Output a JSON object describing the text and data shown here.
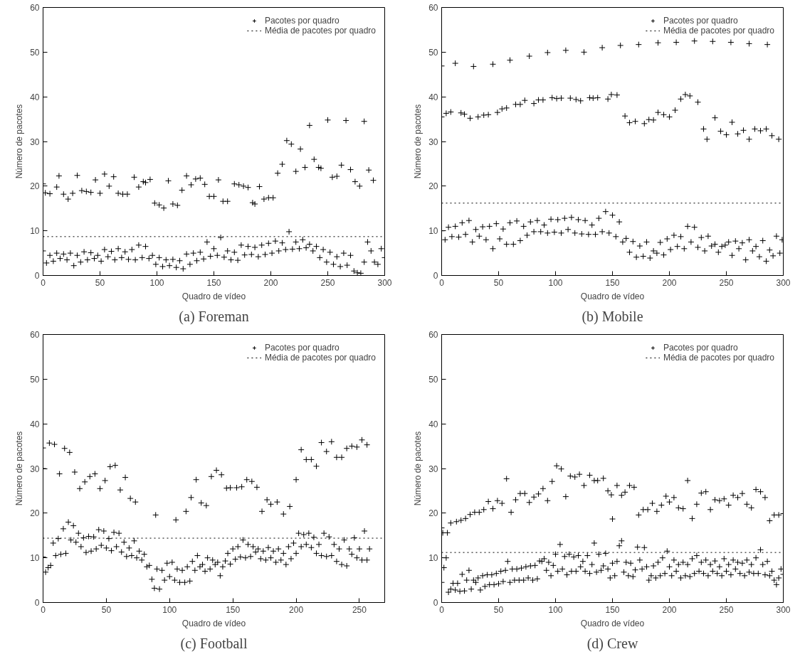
{
  "chart_data": [
    {
      "type": "scatter",
      "title": "(a) Foreman",
      "xlabel": "Quadro de vídeo",
      "ylabel": "Número de pacotes",
      "xlim": [
        0,
        300
      ],
      "xticks": [
        0,
        50,
        100,
        150,
        200,
        250,
        300
      ],
      "ylim": [
        0,
        60
      ],
      "yticks": [
        0,
        10,
        20,
        30,
        40,
        50,
        60
      ],
      "legend": "top right",
      "marker": "cross",
      "series": [
        {
          "name": "Pacotes por quadro",
          "color": "#000000",
          "x": [
            0,
            2,
            6,
            12,
            14,
            18,
            22,
            26,
            30,
            34,
            38,
            42,
            46,
            50,
            54,
            58,
            62,
            66,
            70,
            74,
            80,
            84,
            88,
            90,
            94,
            98,
            102,
            106,
            110,
            114,
            118,
            122,
            126,
            130,
            134,
            138,
            142,
            146,
            150,
            154,
            158,
            162,
            168,
            172,
            176,
            180,
            184,
            186,
            190,
            194,
            198,
            202,
            206,
            210,
            214,
            218,
            222,
            226,
            230,
            234,
            238,
            242,
            244,
            250,
            254,
            258,
            262,
            266,
            270,
            274,
            278,
            282,
            286,
            290,
            0,
            3,
            6,
            9,
            12,
            15,
            18,
            21,
            24,
            27,
            30,
            33,
            36,
            39,
            42,
            45,
            48,
            51,
            54,
            57,
            60,
            63,
            66,
            69,
            72,
            75,
            78,
            81,
            84,
            87,
            90,
            93,
            96,
            99,
            102,
            105,
            108,
            111,
            114,
            117,
            120,
            123,
            126,
            129,
            132,
            135,
            138,
            141,
            144,
            147,
            150,
            153,
            156,
            159,
            162,
            165,
            168,
            171,
            174,
            177,
            180,
            183,
            186,
            189,
            192,
            195,
            198,
            201,
            204,
            207,
            210,
            213,
            216,
            219,
            222,
            225,
            228,
            231,
            234,
            237,
            240,
            243,
            246,
            249,
            252,
            255,
            258,
            261,
            264,
            267,
            270,
            273,
            276,
            279,
            282,
            285,
            288,
            291,
            294,
            297,
            300
          ],
          "values": [
            20.5,
            18.5,
            18.3,
            19.8,
            22.3,
            18.2,
            17.1,
            18.4,
            22.4,
            19,
            18.8,
            18.6,
            21.4,
            18.4,
            22.7,
            20,
            22.1,
            18.4,
            18.2,
            18.2,
            22,
            19.8,
            21,
            20.8,
            21.5,
            16.2,
            15.8,
            15.1,
            21.2,
            16,
            15.7,
            19.1,
            22.3,
            20.3,
            21.6,
            21.8,
            20.4,
            17.7,
            17.7,
            21.4,
            16.6,
            16.6,
            20.5,
            20.3,
            20,
            19.7,
            16.3,
            16,
            19.9,
            17.1,
            17.4,
            17.4,
            22.9,
            24.9,
            30.2,
            29.4,
            23.3,
            28.3,
            24.2,
            33.6,
            26,
            24.2,
            24,
            34.8,
            22,
            22.2,
            24.7,
            34.7,
            23.7,
            21,
            20,
            34.5,
            23.6,
            21.3,
            5.5,
            2.8,
            4.5,
            3.2,
            5,
            3.8,
            4.8,
            3.5,
            5,
            2.2,
            4.5,
            3,
            5.3,
            3.5,
            5.1,
            3.8,
            4.5,
            3.2,
            5.8,
            4.2,
            5.4,
            3.5,
            6,
            4,
            5.3,
            3.6,
            5.8,
            3.5,
            6.8,
            4,
            6.5,
            3.8,
            4.5,
            2.5,
            4,
            2,
            3.5,
            2.2,
            3.6,
            1.8,
            3.3,
            1.5,
            4.8,
            2.5,
            5,
            3.3,
            5.2,
            3.7,
            7.5,
            4.3,
            6,
            4.5,
            8.5,
            4.1,
            5.5,
            3.5,
            5.2,
            3.4,
            6.8,
            4.6,
            6.5,
            4.7,
            6.3,
            4.2,
            6.8,
            4.7,
            7.2,
            5,
            7.7,
            5.5,
            7.3,
            5.8,
            9.8,
            5.9,
            7.5,
            6,
            8,
            6.2,
            7,
            5.5,
            6.5,
            4,
            5.8,
            3,
            5.2,
            2.5,
            4.2,
            2,
            5,
            2.3,
            4.5,
            1,
            0.6,
            0.5,
            3,
            7.5,
            5.5,
            3,
            2.5,
            6,
            4
          ]
        }
      ],
      "ref_lines": [
        {
          "axis": "y",
          "value": 8.7,
          "label": "Média de pacotes por quadro",
          "line_style": "dotted"
        }
      ]
    },
    {
      "type": "scatter",
      "title": "(b) Mobile",
      "xlabel": "Quadro de vídeo",
      "ylabel": "Número de pacotes",
      "xlim": [
        0,
        300
      ],
      "xticks": [
        0,
        50,
        100,
        150,
        200,
        250,
        300
      ],
      "ylim": [
        0,
        60
      ],
      "yticks": [
        0,
        10,
        20,
        30,
        40,
        50,
        60
      ],
      "legend": "top right",
      "marker": "cross",
      "series": [
        {
          "name": "Pacotes por quadro",
          "color": "#000000",
          "x": [
            0,
            12,
            28,
            45,
            60,
            77,
            93,
            109,
            125,
            141,
            157,
            173,
            190,
            206,
            222,
            238,
            254,
            270,
            286,
            0,
            4,
            8,
            17,
            20,
            25,
            32,
            37,
            41,
            49,
            53,
            57,
            65,
            69,
            73,
            81,
            85,
            89,
            97,
            101,
            105,
            113,
            118,
            122,
            130,
            133,
            137,
            146,
            149,
            154,
            161,
            165,
            170,
            178,
            182,
            186,
            190,
            195,
            200,
            205,
            210,
            214,
            218,
            225,
            230,
            233,
            240,
            245,
            250,
            255,
            260,
            265,
            270,
            275,
            280,
            285,
            290,
            296,
            0,
            3,
            6,
            9,
            12,
            15,
            18,
            21,
            24,
            27,
            30,
            33,
            36,
            39,
            42,
            45,
            48,
            51,
            54,
            57,
            60,
            63,
            66,
            69,
            72,
            75,
            78,
            81,
            84,
            87,
            90,
            93,
            96,
            99,
            102,
            105,
            108,
            111,
            114,
            117,
            120,
            123,
            126,
            129,
            132,
            135,
            138,
            141,
            144,
            147,
            150,
            153,
            156,
            159,
            162,
            165,
            168,
            171,
            174,
            177,
            180,
            183,
            186,
            189,
            192,
            195,
            198,
            201,
            204,
            207,
            210,
            213,
            216,
            219,
            222,
            225,
            228,
            231,
            234,
            237,
            240,
            243,
            246,
            249,
            252,
            255,
            258,
            261,
            264,
            267,
            270,
            273,
            276,
            279,
            282,
            285,
            288,
            291,
            294,
            297,
            299
          ],
          "values": [
            46.9,
            47.5,
            46.8,
            47.3,
            48.2,
            49.1,
            49.9,
            50.4,
            50,
            51,
            51.5,
            51.7,
            52.1,
            52.2,
            52.5,
            52.4,
            52.2,
            51.9,
            51.7,
            35.5,
            36.3,
            36.6,
            36.4,
            36.1,
            35.2,
            35.5,
            35.9,
            36,
            36.5,
            37.3,
            37.5,
            38.3,
            38.3,
            39.2,
            38.5,
            39.3,
            39.3,
            39.8,
            39.6,
            39.7,
            39.7,
            39.4,
            39.1,
            39.8,
            39.7,
            39.8,
            39.5,
            40.5,
            40.4,
            35.7,
            34.2,
            34.5,
            34,
            34.9,
            34.8,
            36.5,
            36,
            35.5,
            37,
            39.5,
            40.5,
            40.2,
            38.8,
            32.8,
            30.5,
            35.3,
            32.3,
            31.5,
            34.3,
            31.7,
            32.5,
            30.5,
            32.8,
            32.4,
            32.8,
            31.3,
            30.5,
            10,
            8,
            10.8,
            8.7,
            11,
            8.6,
            11.8,
            9.2,
            12.3,
            7.5,
            10.3,
            8.8,
            10.9,
            8,
            11,
            6,
            11.6,
            8.2,
            10.4,
            7,
            11.8,
            7,
            12.2,
            7.8,
            11,
            9,
            12,
            9.8,
            12.3,
            9.8,
            11.3,
            9.5,
            12.6,
            9.7,
            12.5,
            9.5,
            12.8,
            10.3,
            13,
            9.5,
            12.5,
            9.3,
            12.3,
            9.2,
            11.3,
            9.2,
            12.8,
            9.8,
            14.3,
            9.5,
            13.5,
            8.7,
            12,
            7.5,
            8.3,
            5.2,
            7.6,
            4.1,
            6.6,
            4.3,
            7.5,
            3.9,
            5.5,
            5,
            7.4,
            4.6,
            8.2,
            5.8,
            9,
            6.5,
            8.7,
            6,
            11,
            7.5,
            10.8,
            6.3,
            8.5,
            5.5,
            8.8,
            6.6,
            7,
            5.2,
            6.5,
            6.8,
            7.5,
            4.5,
            7.7,
            6,
            7.3,
            3.5,
            8,
            5.5,
            6.5,
            4.2,
            7.8,
            3.2,
            5.7,
            4.4,
            8.8,
            5,
            8
          ]
        }
      ],
      "ref_lines": [
        {
          "axis": "y",
          "value": 16.2,
          "label": "Média de pacotes por quadro",
          "line_style": "dotted"
        }
      ]
    },
    {
      "type": "scatter",
      "title": "(c) Football",
      "xlabel": "Quadro de vídeo",
      "ylabel": "Número de pacotes",
      "xlim": [
        0,
        270
      ],
      "xticks": [
        0,
        50,
        100,
        150,
        200,
        250
      ],
      "ylim": [
        0,
        60
      ],
      "yticks": [
        0,
        10,
        20,
        30,
        40,
        50,
        60
      ],
      "legend": "top right",
      "marker": "cross",
      "series": [
        {
          "name": "Pacotes por quadro",
          "color": "#000000",
          "x": [
            0,
            0,
            5,
            9,
            13,
            17,
            21,
            25,
            29,
            33,
            37,
            41,
            45,
            49,
            53,
            57,
            61,
            65,
            69,
            73,
            89,
            105,
            113,
            117,
            121,
            125,
            129,
            133,
            137,
            141,
            145,
            148,
            153,
            157,
            161,
            165,
            169,
            173,
            177,
            180,
            185,
            190,
            195,
            200,
            204,
            208,
            212,
            216,
            220,
            224,
            228,
            232,
            236,
            240,
            244,
            248,
            252,
            256,
            0,
            2,
            4,
            6,
            8,
            10,
            12,
            14,
            16,
            18,
            20,
            22,
            24,
            26,
            28,
            30,
            32,
            34,
            36,
            38,
            40,
            42,
            44,
            46,
            48,
            50,
            52,
            54,
            56,
            58,
            60,
            62,
            64,
            66,
            68,
            70,
            72,
            74,
            76,
            78,
            80,
            82,
            84,
            86,
            88,
            90,
            92,
            94,
            96,
            98,
            100,
            102,
            104,
            106,
            108,
            110,
            112,
            114,
            116,
            118,
            120,
            122,
            124,
            126,
            128,
            130,
            132,
            134,
            136,
            138,
            140,
            142,
            144,
            146,
            148,
            150,
            152,
            154,
            156,
            158,
            160,
            162,
            164,
            166,
            168,
            170,
            172,
            174,
            176,
            178,
            180,
            182,
            184,
            186,
            188,
            190,
            192,
            194,
            196,
            198,
            200,
            202,
            204,
            206,
            208,
            210,
            212,
            214,
            216,
            218,
            220,
            222,
            224,
            226,
            228,
            230,
            232,
            234,
            236,
            238,
            240,
            242,
            244,
            246,
            248,
            250,
            252,
            254,
            256,
            258
          ],
          "values": [
            34.6,
            30,
            35.7,
            35.4,
            28.8,
            34.5,
            33.6,
            29.2,
            25.5,
            27,
            28.2,
            28.8,
            25.5,
            27.3,
            30.4,
            30.7,
            25.2,
            28,
            23.3,
            22.5,
            19.6,
            18.5,
            20.4,
            23.5,
            27.5,
            22.3,
            21.7,
            28.2,
            29.6,
            28.6,
            25.6,
            25.7,
            25.7,
            25.9,
            27.5,
            27.1,
            25.8,
            20.4,
            23,
            22,
            22.5,
            19.8,
            21.5,
            27.5,
            34.2,
            32,
            32,
            30.5,
            35.8,
            33.8,
            36,
            32.5,
            32.5,
            34.5,
            35,
            34.8,
            36.4,
            35.3,
            10.2,
            6.8,
            7.8,
            8.3,
            13.3,
            10.5,
            14.3,
            10.8,
            16.5,
            11,
            18,
            14,
            17.2,
            13.5,
            15.5,
            12.5,
            14.5,
            11.2,
            14.8,
            11.5,
            14.7,
            12,
            16.3,
            12.8,
            16,
            12.2,
            14.3,
            11.6,
            15.7,
            12.5,
            15.5,
            11.3,
            13.5,
            10.3,
            12.2,
            10.5,
            13.8,
            10,
            11.5,
            9.5,
            10.8,
            8,
            8.3,
            5.2,
            3.2,
            7.5,
            3,
            7.2,
            5,
            8.8,
            5.8,
            9,
            5,
            7.5,
            4.5,
            7.2,
            4.5,
            8,
            4.8,
            9.2,
            7.2,
            10.5,
            8,
            8.5,
            7,
            10,
            7.5,
            9.5,
            8.5,
            9,
            6,
            8,
            9.3,
            11,
            8.6,
            12,
            9.7,
            12.5,
            10.2,
            14,
            10,
            13,
            10.3,
            12.5,
            11.3,
            12,
            9.8,
            11.5,
            9.5,
            12.3,
            10,
            11.5,
            9,
            12,
            9.5,
            11,
            8.5,
            12.5,
            9.8,
            13.3,
            11,
            15.5,
            12.5,
            15.2,
            13,
            15.5,
            12.3,
            14.6,
            11,
            13,
            10.5,
            15.5,
            10.3,
            14.7,
            10.5,
            13,
            9.2,
            12,
            8.5,
            14,
            8.2,
            12,
            10.8,
            14.5,
            10,
            12,
            9.5,
            16,
            9.5,
            12
          ]
        }
      ],
      "ref_lines": [
        {
          "axis": "y",
          "value": 14.4,
          "label": "Média de pacotes por quadro",
          "line_style": "dotted"
        }
      ]
    },
    {
      "type": "scatter",
      "title": "(d) Crew",
      "xlabel": "Quadro de vídeo",
      "ylabel": "Número de pacotes",
      "xlim": [
        0,
        300
      ],
      "xticks": [
        0,
        50,
        100,
        150,
        200,
        250,
        300
      ],
      "ylim": [
        0,
        60
      ],
      "yticks": [
        0,
        10,
        20,
        30,
        40,
        50,
        60
      ],
      "legend": "top right",
      "marker": "cross",
      "series": [
        {
          "name": "Pacotes por quadro",
          "color": "#000000",
          "x": [
            0,
            1,
            5,
            8,
            13,
            17,
            21,
            25,
            29,
            33,
            37,
            41,
            45,
            49,
            53,
            57,
            61,
            65,
            69,
            73,
            77,
            81,
            85,
            89,
            93,
            97,
            101,
            105,
            109,
            113,
            117,
            121,
            125,
            130,
            134,
            137,
            142,
            146,
            149,
            150,
            154,
            158,
            161,
            165,
            169,
            173,
            177,
            181,
            185,
            189,
            193,
            197,
            200,
            204,
            208,
            212,
            216,
            220,
            224,
            228,
            232,
            236,
            240,
            244,
            248,
            252,
            256,
            260,
            264,
            268,
            272,
            276,
            280,
            284,
            288,
            292,
            296,
            300,
            0,
            2,
            4,
            6,
            8,
            10,
            12,
            14,
            16,
            18,
            20,
            22,
            24,
            26,
            28,
            30,
            32,
            34,
            36,
            38,
            40,
            42,
            44,
            46,
            48,
            50,
            52,
            54,
            56,
            58,
            60,
            62,
            64,
            66,
            68,
            70,
            72,
            74,
            76,
            78,
            80,
            82,
            84,
            86,
            88,
            90,
            92,
            94,
            96,
            98,
            100,
            102,
            104,
            106,
            108,
            110,
            112,
            114,
            116,
            118,
            120,
            122,
            124,
            126,
            128,
            130,
            132,
            134,
            136,
            138,
            140,
            142,
            144,
            146,
            148,
            150,
            152,
            154,
            156,
            158,
            160,
            162,
            164,
            166,
            168,
            170,
            172,
            174,
            176,
            178,
            180,
            182,
            184,
            186,
            188,
            190,
            192,
            194,
            196,
            198,
            200,
            202,
            204,
            206,
            208,
            210,
            212,
            214,
            216,
            218,
            220,
            222,
            224,
            226,
            228,
            230,
            232,
            234,
            236,
            238,
            240,
            242,
            244,
            246,
            248,
            250,
            252,
            254,
            256,
            258,
            260,
            262,
            264,
            266,
            268,
            270,
            272,
            274,
            276,
            278,
            280,
            282,
            284,
            286,
            288,
            290,
            292,
            294,
            296,
            298,
            300
          ],
          "values": [
            16.7,
            15.6,
            15.6,
            17.8,
            18.1,
            18.4,
            18.8,
            19.7,
            20.2,
            20.2,
            20.8,
            22.6,
            21,
            22.8,
            22.2,
            27.7,
            20.2,
            23,
            24.4,
            24.4,
            22.4,
            23.6,
            24.3,
            25.5,
            22.8,
            27.1,
            30.6,
            29.9,
            23.7,
            28.3,
            28.1,
            28.7,
            26.2,
            28.5,
            27.3,
            27.3,
            27.8,
            25,
            24.1,
            18.7,
            26.2,
            24,
            24.7,
            26.2,
            25.8,
            19.6,
            20.8,
            20.8,
            22.2,
            20.4,
            21.8,
            23.8,
            22.5,
            23.5,
            21.2,
            21,
            27.3,
            18.8,
            22,
            24.5,
            24.8,
            20.8,
            23,
            22.8,
            23.2,
            21.8,
            24,
            23.5,
            24.4,
            22,
            21.2,
            25.3,
            24.8,
            23.5,
            18.3,
            19.6,
            19.6,
            19.9,
            4.5,
            7.8,
            10,
            2.3,
            3,
            4.3,
            2.8,
            4.3,
            2.5,
            6.3,
            2.6,
            5,
            7.2,
            3,
            5,
            4.5,
            5.5,
            2.8,
            6,
            3.6,
            6.2,
            4,
            6.2,
            4,
            6.5,
            4.2,
            7,
            4.7,
            7.2,
            9.2,
            4.5,
            7.5,
            5,
            7.5,
            5,
            7.7,
            5,
            8,
            5.5,
            8.2,
            5,
            8.3,
            5.3,
            9.3,
            9.2,
            9.8,
            7.2,
            9,
            6,
            8.3,
            10.8,
            7,
            13,
            7.5,
            10.3,
            6.2,
            10.8,
            7,
            10.2,
            7,
            10.5,
            8,
            9.2,
            7,
            10.5,
            6.5,
            8.5,
            13.3,
            6.8,
            10.8,
            7.2,
            8.2,
            11,
            7.5,
            5.5,
            8.8,
            6,
            9.2,
            12.7,
            13.8,
            6.8,
            9,
            6,
            8.8,
            5.8,
            7.3,
            12.4,
            9.5,
            7.5,
            12.3,
            8,
            5,
            6,
            8.2,
            5.5,
            9,
            6,
            10,
            6.5,
            11.5,
            8,
            6,
            9.5,
            7,
            8.5,
            5.5,
            9,
            6,
            8.5,
            5.8,
            9.8,
            6.5,
            10.5,
            7,
            9,
            6.5,
            9.5,
            6,
            8.5,
            7,
            9.3,
            6.5,
            8,
            6,
            9.8,
            7,
            8.5,
            6.2,
            9.5,
            7.5,
            9,
            6.5,
            8.8,
            6,
            9.5,
            6.8,
            8.5,
            6.5,
            10,
            6.5,
            11.8,
            8.5,
            6.2,
            9.2,
            6,
            7,
            5,
            4,
            5.5,
            7.5,
            6.3
          ]
        }
      ],
      "ref_lines": [
        {
          "axis": "y",
          "value": 11.2,
          "label": "Média de pacotes por quadro",
          "line_style": "dotted"
        }
      ]
    }
  ]
}
